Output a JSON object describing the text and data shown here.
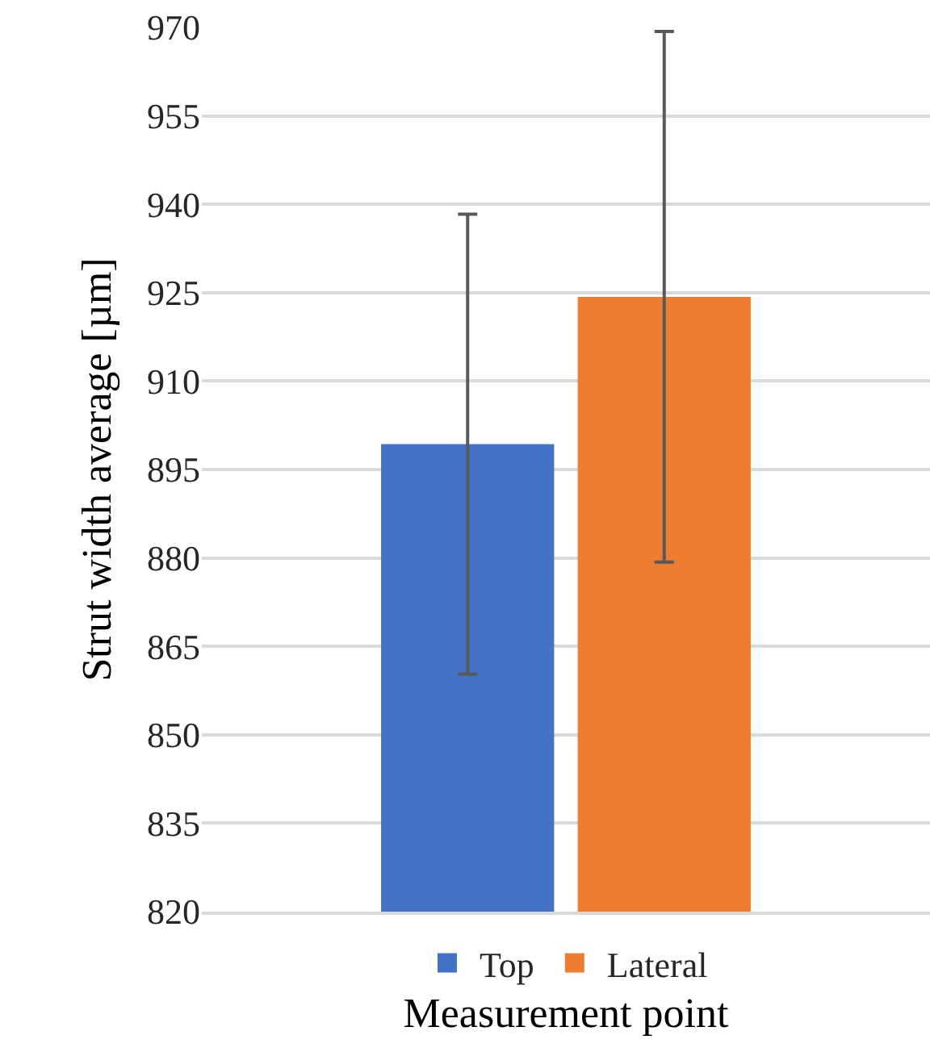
{
  "chart_data": {
    "type": "bar",
    "xlabel": "Measurement point",
    "ylabel": "Strut width average [µm]",
    "categories": [
      null
    ],
    "series": [
      {
        "name": "Top",
        "color": "#4472c4",
        "values": [
          899.3
        ],
        "errors": [
          39
        ]
      },
      {
        "name": "Lateral",
        "color": "#ed7d31",
        "values": [
          924.3
        ],
        "errors": [
          45
        ]
      }
    ],
    "ylim": [
      820,
      970
    ],
    "yticks": [
      820,
      835,
      850,
      865,
      880,
      895,
      910,
      925,
      940,
      955,
      970
    ],
    "grid": "y",
    "legend": "bottom"
  }
}
